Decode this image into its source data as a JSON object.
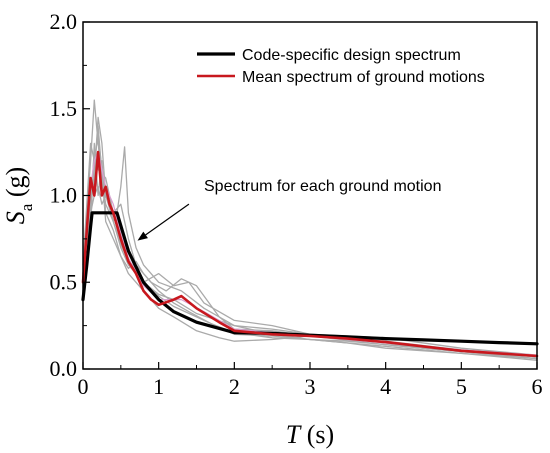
{
  "chart_data": {
    "type": "line",
    "xlabel": {
      "symbol": "T",
      "unit": " (s)"
    },
    "ylabel": {
      "symbol": "S",
      "subscript": "a",
      "unit": " (g)"
    },
    "xlim": [
      0,
      6
    ],
    "ylim": [
      0,
      2
    ],
    "xticks": [
      0,
      1,
      2,
      3,
      4,
      5,
      6
    ],
    "yticks": [
      0.0,
      0.5,
      1.0,
      1.5,
      2.0
    ],
    "xtick_labels": [
      "0",
      "1",
      "2",
      "3",
      "4",
      "5",
      "6"
    ],
    "ytick_labels": [
      "0.0",
      "0.5",
      "1.0",
      "1.5",
      "2.0"
    ],
    "grid": false,
    "legend_position": "top-right",
    "annotation": {
      "text": "Spectrum for each ground motion",
      "arrow_to": [
        0.72,
        0.74
      ],
      "arrow_from": [
        1.4,
        0.95
      ]
    },
    "series": [
      {
        "name": "Code-specific design spectrum",
        "color": "#000000",
        "width": 3.2,
        "legend": true,
        "x": [
          0.0,
          0.05,
          0.1,
          0.12,
          0.45,
          0.6,
          0.8,
          1.0,
          1.2,
          1.5,
          2.0,
          2.5,
          3.0,
          3.5,
          4.0,
          4.5,
          5.0,
          5.5,
          6.0
        ],
        "y": [
          0.4,
          0.6,
          0.82,
          0.9,
          0.9,
          0.68,
          0.5,
          0.4,
          0.33,
          0.27,
          0.21,
          0.205,
          0.195,
          0.185,
          0.175,
          0.168,
          0.16,
          0.152,
          0.145
        ]
      },
      {
        "name": "Mean spectrum of ground motions",
        "color": "#c8181e",
        "width": 2.6,
        "legend": true,
        "x": [
          0.0,
          0.05,
          0.1,
          0.15,
          0.2,
          0.25,
          0.3,
          0.35,
          0.4,
          0.5,
          0.6,
          0.7,
          0.8,
          0.9,
          1.0,
          1.2,
          1.3,
          1.5,
          1.8,
          2.0,
          2.5,
          3.0,
          3.5,
          4.0,
          4.5,
          5.0,
          5.5,
          6.0
        ],
        "y": [
          0.5,
          0.8,
          1.1,
          1.0,
          1.25,
          1.0,
          1.05,
          0.95,
          0.9,
          0.75,
          0.62,
          0.55,
          0.45,
          0.4,
          0.37,
          0.4,
          0.42,
          0.35,
          0.27,
          0.22,
          0.2,
          0.19,
          0.175,
          0.155,
          0.13,
          0.105,
          0.09,
          0.075
        ]
      },
      {
        "name": "",
        "color": "#aaaaaa",
        "width": 1.3,
        "legend": false,
        "x": [
          0.0,
          0.05,
          0.1,
          0.15,
          0.2,
          0.25,
          0.3,
          0.4,
          0.5,
          0.6,
          0.8,
          1.0,
          1.2,
          1.5,
          2.0,
          2.5,
          3.0,
          3.5,
          4.0,
          5.0,
          6.0
        ],
        "y": [
          0.55,
          0.9,
          1.2,
          1.55,
          1.3,
          1.1,
          0.95,
          0.85,
          0.7,
          0.6,
          0.5,
          0.43,
          0.4,
          0.32,
          0.25,
          0.2,
          0.17,
          0.15,
          0.12,
          0.09,
          0.06
        ]
      },
      {
        "name": "",
        "color": "#aaaaaa",
        "width": 1.3,
        "legend": false,
        "x": [
          0.0,
          0.05,
          0.1,
          0.15,
          0.2,
          0.25,
          0.3,
          0.4,
          0.5,
          0.6,
          0.7,
          0.9,
          1.1,
          1.3,
          1.5,
          1.8,
          2.0,
          2.5,
          3.0,
          4.0,
          5.0,
          6.0
        ],
        "y": [
          0.45,
          0.7,
          0.95,
          1.1,
          1.45,
          1.3,
          1.0,
          0.9,
          0.95,
          0.75,
          0.6,
          0.5,
          0.45,
          0.52,
          0.48,
          0.3,
          0.23,
          0.22,
          0.19,
          0.14,
          0.1,
          0.06
        ]
      },
      {
        "name": "",
        "color": "#aaaaaa",
        "width": 1.3,
        "legend": false,
        "x": [
          0.0,
          0.05,
          0.1,
          0.15,
          0.2,
          0.25,
          0.3,
          0.35,
          0.4,
          0.45,
          0.5,
          0.55,
          0.6,
          0.7,
          0.8,
          1.0,
          1.3,
          1.6,
          2.0,
          2.5,
          3.0,
          4.0,
          5.0,
          6.0
        ],
        "y": [
          0.5,
          0.75,
          0.9,
          1.0,
          1.05,
          0.95,
          1.0,
          0.95,
          0.85,
          0.9,
          1.05,
          1.28,
          0.9,
          0.7,
          0.6,
          0.5,
          0.45,
          0.35,
          0.25,
          0.23,
          0.2,
          0.16,
          0.11,
          0.07
        ]
      },
      {
        "name": "",
        "color": "#aaaaaa",
        "width": 1.3,
        "legend": false,
        "x": [
          0.0,
          0.05,
          0.1,
          0.15,
          0.2,
          0.25,
          0.3,
          0.4,
          0.5,
          0.6,
          0.7,
          0.8,
          1.0,
          1.2,
          1.4,
          1.7,
          2.0,
          2.5,
          3.0,
          3.5,
          4.0,
          5.0,
          6.0
        ],
        "y": [
          0.4,
          0.65,
          0.8,
          1.3,
          1.0,
          1.2,
          0.9,
          0.8,
          0.65,
          0.58,
          0.62,
          0.55,
          0.45,
          0.38,
          0.33,
          0.26,
          0.21,
          0.18,
          0.17,
          0.16,
          0.14,
          0.1,
          0.07
        ]
      },
      {
        "name": "",
        "color": "#aaaaaa",
        "width": 1.3,
        "legend": false,
        "x": [
          0.0,
          0.05,
          0.1,
          0.15,
          0.2,
          0.3,
          0.4,
          0.5,
          0.6,
          0.8,
          1.0,
          1.2,
          1.5,
          1.8,
          2.0,
          2.5,
          3.0,
          3.5,
          4.0,
          4.5,
          5.0,
          6.0
        ],
        "y": [
          0.5,
          0.85,
          1.0,
          1.15,
          1.4,
          0.85,
          0.75,
          0.65,
          0.55,
          0.45,
          0.35,
          0.3,
          0.22,
          0.18,
          0.16,
          0.17,
          0.19,
          0.18,
          0.15,
          0.12,
          0.1,
          0.06
        ]
      },
      {
        "name": "",
        "color": "#aaaaaa",
        "width": 1.3,
        "legend": false,
        "x": [
          0.0,
          0.05,
          0.1,
          0.15,
          0.2,
          0.3,
          0.4,
          0.5,
          0.6,
          0.7,
          0.8,
          1.0,
          1.2,
          1.4,
          1.6,
          2.0,
          2.5,
          3.0,
          4.0,
          5.0,
          6.0
        ],
        "y": [
          0.45,
          0.6,
          0.95,
          1.25,
          1.15,
          1.1,
          0.9,
          0.8,
          0.7,
          0.55,
          0.5,
          0.55,
          0.48,
          0.5,
          0.38,
          0.28,
          0.25,
          0.2,
          0.18,
          0.12,
          0.08
        ]
      },
      {
        "name": "",
        "color": "#aaaaaa",
        "width": 1.3,
        "legend": false,
        "x": [
          0.0,
          0.05,
          0.1,
          0.15,
          0.2,
          0.25,
          0.3,
          0.4,
          0.5,
          0.6,
          0.8,
          1.0,
          1.2,
          1.5,
          1.8,
          2.0,
          2.5,
          3.0,
          4.0,
          5.0,
          6.0
        ],
        "y": [
          0.6,
          0.95,
          1.3,
          1.2,
          1.35,
          1.15,
          1.0,
          0.85,
          0.72,
          0.62,
          0.5,
          0.42,
          0.36,
          0.3,
          0.24,
          0.2,
          0.19,
          0.17,
          0.13,
          0.09,
          0.05
        ]
      },
      {
        "name": "",
        "color": "#d9a0d0",
        "width": 1.2,
        "legend": false,
        "x": [
          0.0,
          0.05,
          0.1,
          0.15,
          0.2,
          0.3,
          0.4,
          0.5,
          0.6,
          0.8,
          1.0,
          1.3,
          1.6,
          2.0,
          2.5,
          3.0,
          3.5,
          4.0,
          4.5,
          5.0,
          6.0
        ],
        "y": [
          0.5,
          0.8,
          1.05,
          1.2,
          1.25,
          1.05,
          0.95,
          0.78,
          0.64,
          0.48,
          0.4,
          0.4,
          0.33,
          0.23,
          0.21,
          0.19,
          0.17,
          0.15,
          0.13,
          0.11,
          0.08
        ]
      }
    ]
  }
}
